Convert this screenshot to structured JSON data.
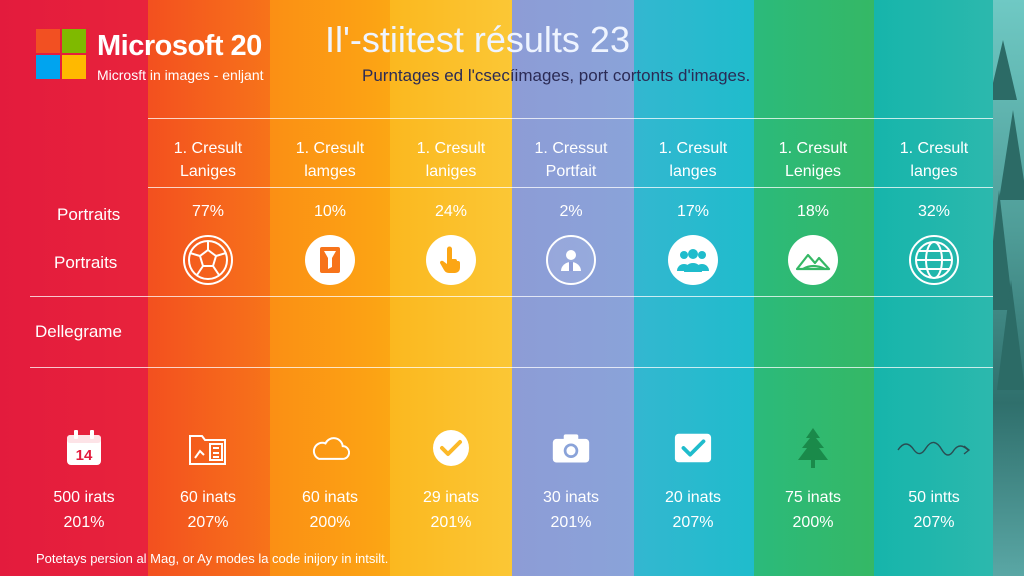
{
  "header": {
    "brand": "Microsoft 20",
    "tagline": "Microsft in images - enljant",
    "title": "Il'-stiitest résults 23",
    "subtitle": "Purntages ed l'csecíimages, port cortonts d'images."
  },
  "logo_colors": [
    "#f25022",
    "#7fba00",
    "#00a4ef",
    "#ffb900"
  ],
  "row_labels": {
    "row1": "Portraits",
    "row2": "Portraits",
    "row3": "Dellegrame"
  },
  "columns": [
    {
      "head1": "1. Cresult",
      "head2": "Laniges",
      "percent": "77%",
      "top_icon": "globe-ball-icon",
      "bottom_icon": "calendar-14-icon",
      "calendar_day": "14",
      "stat1": "60 inats",
      "stat2": "207%"
    },
    {
      "head1": "1. Cresult",
      "head2": "lamges",
      "percent": "10%",
      "top_icon": "document-filter-icon",
      "bottom_icon": "calculator-folder-icon",
      "stat1": "60 inats",
      "stat2": "200%"
    },
    {
      "head1": "1. Cresult",
      "head2": "laniges",
      "percent": "24%",
      "top_icon": "hand-pointer-icon",
      "bottom_icon": "cloud-icon",
      "stat1": "29 inats",
      "stat2": "201%"
    },
    {
      "head1": "1. Cressut",
      "head2": "Portfait",
      "percent": "2%",
      "top_icon": "person-icon",
      "bottom_icon": "checkmark-icon",
      "stat1": "30 inats",
      "stat2": "201%"
    },
    {
      "head1": "1. Cresult",
      "head2": "langes",
      "percent": "17%",
      "top_icon": "group-icon",
      "bottom_icon": "camera-icon",
      "stat1": "20 inats",
      "stat2": "207%"
    },
    {
      "head1": "1. Cresult",
      "head2": "Leniges",
      "percent": "18%",
      "top_icon": "mountain-icon",
      "bottom_icon": "checkbox-icon",
      "stat1": "75 inats",
      "stat2": "200%"
    },
    {
      "head1": "1. Cresult",
      "head2": "langes",
      "percent": "32%",
      "top_icon": "globe-icon",
      "bottom_icon": "tree-icon",
      "stat1": "50 intts",
      "stat2": "207%"
    }
  ],
  "left_stats": {
    "stat1": "500 irats",
    "stat2": "201%"
  },
  "extra_icon": "squiggle-arrow-icon",
  "footer": "Potetays persion al Mag, or Ay modes la code inijory in intsilt.",
  "band_colors": [
    "#e31b3d",
    "#f5621a",
    "#fc9a14",
    "#fbbf26",
    "#8fa0d8",
    "#73a9d6",
    "#1fbccc",
    "#31b86a",
    "#20b3a5"
  ]
}
